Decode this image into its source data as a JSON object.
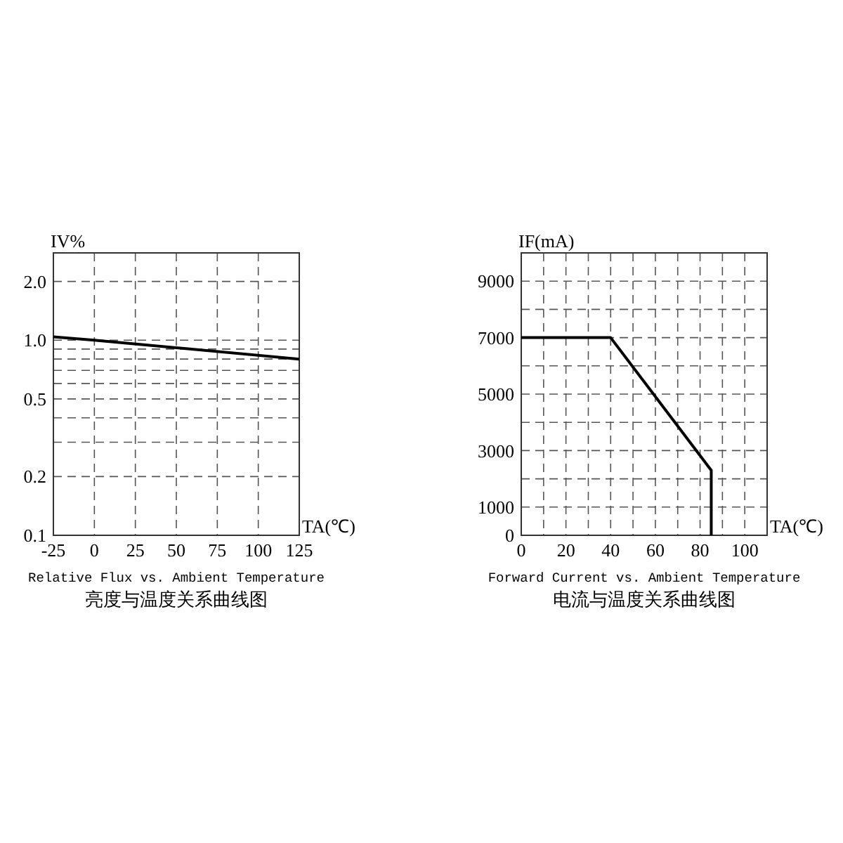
{
  "chart_data": [
    {
      "type": "line",
      "title": "Relative Flux vs. Ambient Temperature",
      "subtitle": "亮度与温度关系曲线图",
      "xlabel": "TA(℃)",
      "ylabel": "IV%",
      "log": true,
      "grid": true,
      "x": [
        -25,
        0,
        125
      ],
      "series": [
        {
          "color": "#000000",
          "values": [
            1.04,
            1.0,
            0.8
          ]
        }
      ],
      "xlim": [
        -25,
        125
      ],
      "xticks": [
        -25,
        0,
        25,
        50,
        75,
        100,
        125
      ],
      "ylim": [
        0.1,
        2.8
      ],
      "yticks": [
        {
          "value": 0.1,
          "label": "0.1"
        },
        {
          "value": 0.2,
          "label": "0.2"
        },
        {
          "value": 0.3,
          "label": null
        },
        {
          "value": 0.4,
          "label": null
        },
        {
          "value": 0.5,
          "label": "0.5"
        },
        {
          "value": 0.6,
          "label": null
        },
        {
          "value": 0.7,
          "label": null
        },
        {
          "value": 0.8,
          "label": null
        },
        {
          "value": 0.9,
          "label": null
        },
        {
          "value": 1,
          "label": "1.0"
        },
        {
          "value": 2,
          "label": "2.0"
        }
      ]
    },
    {
      "type": "line",
      "title": "Forward Current vs. Ambient Temperature",
      "subtitle": "电流与温度关系曲线图",
      "xlabel": "TA(℃)",
      "ylabel": "IF(mA)",
      "grid": true,
      "x": [
        0,
        40,
        85,
        85
      ],
      "series": [
        {
          "color": "#000000",
          "values": [
            7000,
            7000,
            2300,
            0
          ]
        }
      ],
      "xlim": [
        0,
        110
      ],
      "xticks": [
        0,
        20,
        40,
        60,
        80,
        100,
        {
          "value": 10,
          "label": null
        },
        {
          "value": 30,
          "label": null
        },
        {
          "value": 50,
          "label": null
        },
        {
          "value": 70,
          "label": null
        },
        {
          "value": 90,
          "label": null
        }
      ],
      "ylim": [
        0,
        10000
      ],
      "yticks": [
        0,
        1000,
        3000,
        5000,
        7000,
        9000,
        {
          "value": 2000,
          "label": null
        },
        {
          "value": 4000,
          "label": null
        },
        {
          "value": 6000,
          "label": null
        },
        {
          "value": 8000,
          "label": null
        }
      ]
    }
  ]
}
